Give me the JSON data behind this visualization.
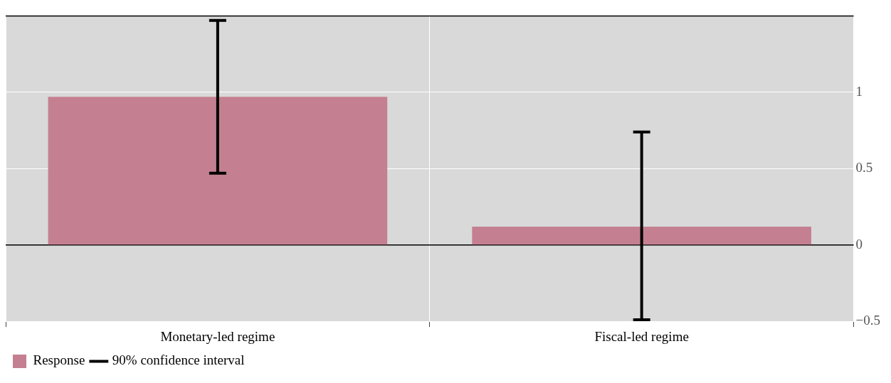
{
  "chart_data": {
    "type": "bar",
    "categories": [
      "Monetary-led regime",
      "Fiscal-led regime"
    ],
    "series": [
      {
        "name": "Response",
        "color": "#c48090",
        "values": [
          0.97,
          0.12
        ],
        "errors": [
          [
            0.47,
            1.47
          ],
          [
            -0.49,
            0.74
          ]
        ]
      }
    ],
    "ylim": [
      -0.5,
      1.5
    ],
    "yticks": [
      -0.5,
      0,
      0.5,
      1
    ],
    "ref_lines": [
      {
        "axis": "y",
        "value": 0,
        "color": "#000000"
      }
    ],
    "annotations": [
      "90% confidence interval"
    ],
    "grid": true,
    "legend": "bottom left"
  }
}
